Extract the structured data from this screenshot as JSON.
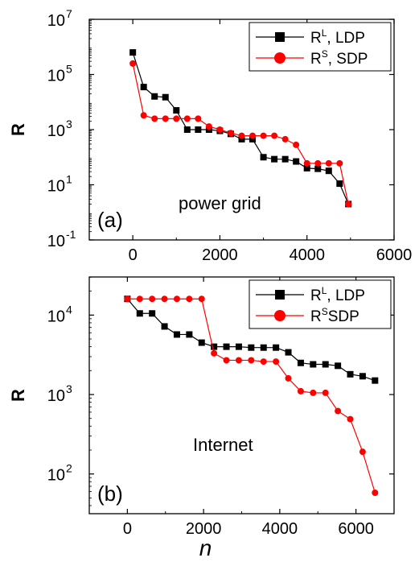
{
  "chart_data": [
    {
      "type": "line",
      "panel_label": "(a)",
      "annotation": "power grid",
      "xlabel": "",
      "ylabel": "R",
      "xlim": [
        -1000,
        6000
      ],
      "ylim_log10": [
        -1,
        7
      ],
      "y_scale": "log",
      "x_ticks": [
        0,
        2000,
        4000,
        6000
      ],
      "x_tick_labels": [
        "0",
        "2000",
        "4000",
        "6000"
      ],
      "y_ticks": [
        {
          "exp": -1,
          "label_base": "10",
          "label_exp": "-1"
        },
        {
          "exp": 1,
          "label_base": "10",
          "label_exp": "1"
        },
        {
          "exp": 3,
          "label_base": "10",
          "label_exp": "3"
        },
        {
          "exp": 5,
          "label_base": "10",
          "label_exp": "5"
        },
        {
          "exp": 7,
          "label_base": "10",
          "label_exp": "7"
        }
      ],
      "legend_position": "top-right",
      "series": [
        {
          "legend_base": "R",
          "legend_sup": "L",
          "legend_rest": ", LDP",
          "color": "#000000",
          "marker": "square",
          "x": [
            0,
            250,
            500,
            750,
            1000,
            1250,
            1500,
            1750,
            2000,
            2250,
            2500,
            2750,
            3000,
            3250,
            3500,
            3750,
            4000,
            4250,
            4500,
            4750,
            4950
          ],
          "y": [
            630000,
            35000,
            16000,
            15000,
            5000,
            1000,
            1000,
            1000,
            900,
            700,
            450,
            450,
            100,
            85,
            85,
            70,
            40,
            38,
            32,
            11,
            2
          ]
        },
        {
          "legend_base": "R",
          "legend_sup": "S",
          "legend_rest": ", SDP",
          "color": "#ff0000",
          "marker": "circle",
          "x": [
            0,
            250,
            500,
            750,
            1000,
            1250,
            1500,
            1750,
            2000,
            2250,
            2500,
            2750,
            3000,
            3250,
            3500,
            3750,
            4000,
            4250,
            4500,
            4750,
            4950
          ],
          "y": [
            250000,
            3300,
            2500,
            2500,
            2500,
            2500,
            2500,
            1300,
            1000,
            750,
            600,
            600,
            600,
            600,
            450,
            280,
            60,
            60,
            60,
            60,
            2
          ]
        }
      ]
    },
    {
      "type": "line",
      "panel_label": "(b)",
      "annotation": "Internet",
      "xlabel": "n",
      "ylabel": "R",
      "xlim": [
        -1000,
        7000
      ],
      "ylim_log10": [
        1.5,
        4.48
      ],
      "y_scale": "log",
      "x_ticks": [
        0,
        2000,
        4000,
        6000
      ],
      "x_tick_labels": [
        "0",
        "2000",
        "4000",
        "6000"
      ],
      "y_ticks": [
        {
          "exp": 2,
          "label_base": "10",
          "label_exp": "2"
        },
        {
          "exp": 3,
          "label_base": "10",
          "label_exp": "3"
        },
        {
          "exp": 4,
          "label_base": "10",
          "label_exp": "4"
        }
      ],
      "legend_position": "top-right",
      "series": [
        {
          "legend_base": "R",
          "legend_sup": "L",
          "legend_rest": ", LDP",
          "color": "#000000",
          "marker": "square",
          "x": [
            0,
            325,
            650,
            975,
            1300,
            1625,
            1950,
            2275,
            2600,
            2925,
            3250,
            3575,
            3900,
            4225,
            4550,
            4875,
            5200,
            5525,
            5850,
            6175,
            6500
          ],
          "y": [
            16000,
            10500,
            10500,
            7200,
            5700,
            5700,
            4500,
            4000,
            4000,
            4000,
            3900,
            3900,
            3900,
            3400,
            2500,
            2400,
            2400,
            2300,
            1800,
            1700,
            1500
          ]
        },
        {
          "legend_base": "R",
          "legend_sup": "S",
          "legend_rest": "SDP",
          "color": "#ff0000",
          "marker": "circle",
          "x": [
            0,
            325,
            650,
            975,
            1300,
            1625,
            1950,
            2275,
            2600,
            2925,
            3250,
            3575,
            3900,
            4225,
            4550,
            4875,
            5200,
            5525,
            5850,
            6175,
            6500
          ],
          "y": [
            16000,
            16000,
            16000,
            16000,
            16000,
            16000,
            16000,
            3300,
            2700,
            2700,
            2700,
            2600,
            2600,
            1600,
            1100,
            1050,
            1050,
            620,
            490,
            190,
            58
          ]
        }
      ]
    }
  ]
}
